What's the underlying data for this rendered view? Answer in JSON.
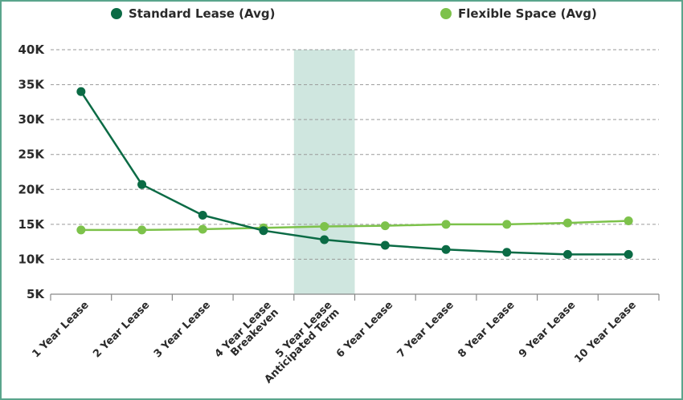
{
  "chart_data": {
    "type": "line",
    "title": "",
    "xlabel": "",
    "ylabel": "",
    "categories": [
      [
        "1 Year Lease"
      ],
      [
        "2 Year Lease"
      ],
      [
        "3 Year Lease"
      ],
      [
        "4 Year Lease",
        "Breakeven"
      ],
      [
        "5 Year Lease",
        "Anticipated Term"
      ],
      [
        "6 Year Lease"
      ],
      [
        "7 Year Lease"
      ],
      [
        "8 Year Lease"
      ],
      [
        "9 Year Lease"
      ],
      [
        "10 Year Lease"
      ]
    ],
    "series": [
      {
        "name": "Standard Lease (Avg)",
        "color": "#0b6b45",
        "values": [
          34000,
          20700,
          16300,
          14100,
          12800,
          12000,
          11400,
          11000,
          10700,
          10700
        ]
      },
      {
        "name": "Flexible Space (Avg)",
        "color": "#7dc24b",
        "values": [
          14200,
          14200,
          14300,
          14500,
          14700,
          14800,
          15000,
          15000,
          15200,
          15500
        ]
      }
    ],
    "y_ticks": [
      "5K",
      "10K",
      "15K",
      "20K",
      "25K",
      "30K",
      "35K",
      "40K"
    ],
    "y_tick_values": [
      5000,
      10000,
      15000,
      20000,
      25000,
      30000,
      35000,
      40000
    ],
    "ylim": [
      5000,
      40000
    ],
    "highlight_category_index": 4,
    "highlight_color": "#cfe6df",
    "grid": true,
    "legend_position": "top"
  }
}
